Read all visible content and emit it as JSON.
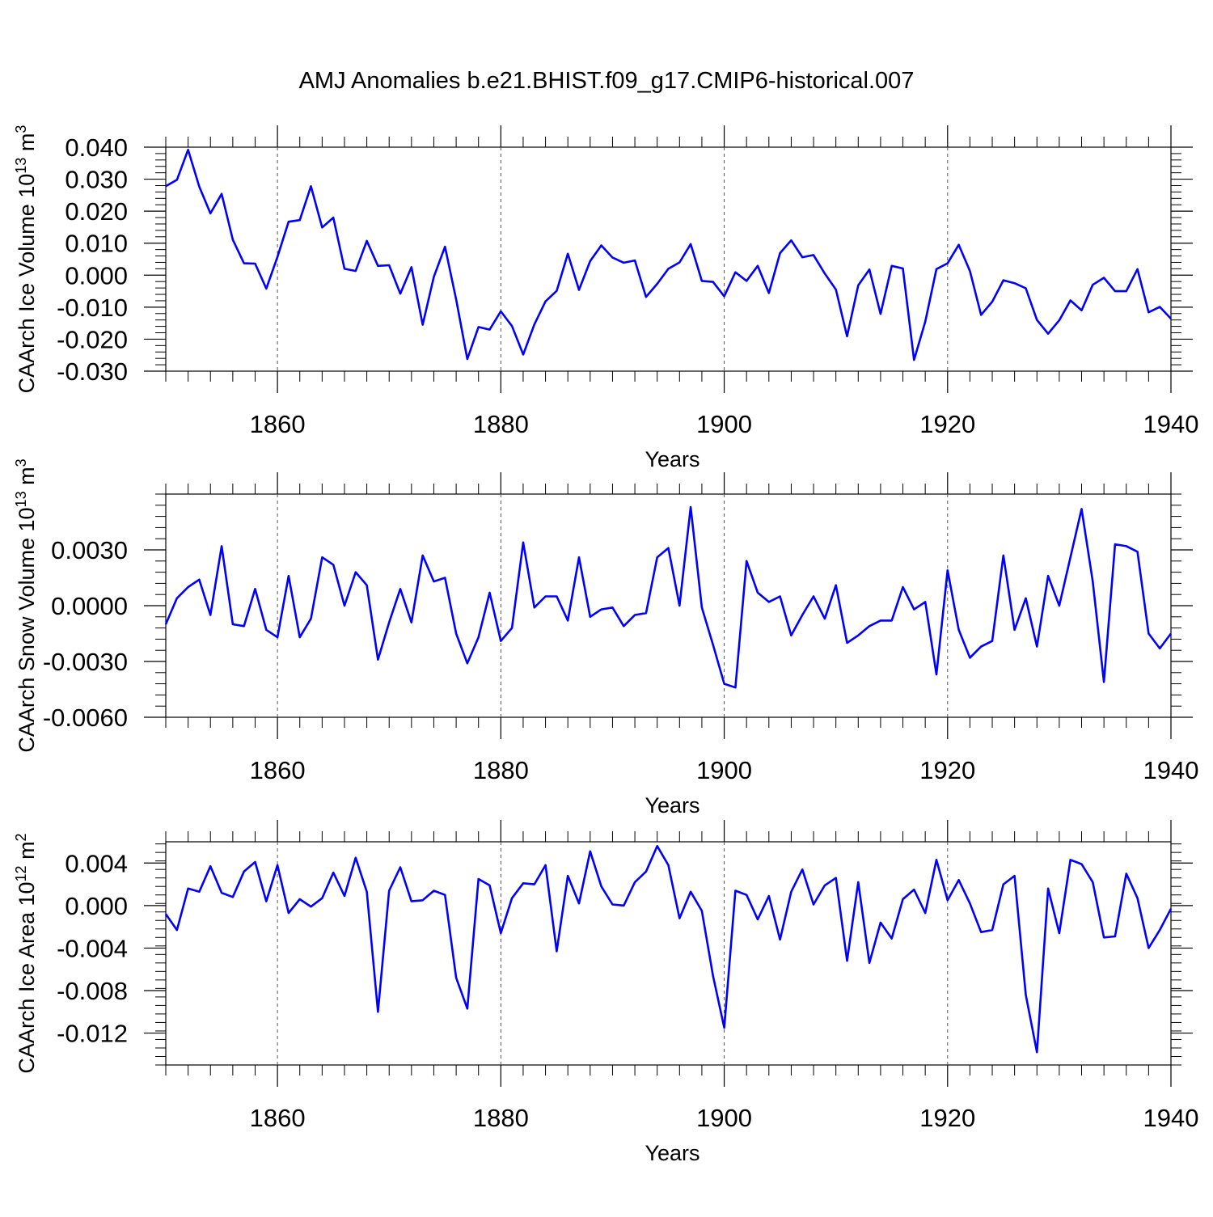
{
  "title": "AMJ Anomalies b.e21.BHIST.f09_g17.CMIP6-historical.007",
  "line_color": "#0000ff",
  "chart_data": [
    {
      "type": "line",
      "ylabel": "CAArch Ice Volume",
      "yunit_base": "10",
      "yunit_exp": "13",
      "yunit_unit": "m",
      "yunit_unit_exp": "3",
      "xlabel": "Years",
      "xlim": [
        1850,
        1940
      ],
      "ylim": [
        -0.03,
        0.04
      ],
      "xticks": [
        1860,
        1880,
        1900,
        1920,
        1940
      ],
      "yticks": [
        -0.03,
        -0.02,
        -0.01,
        0.0,
        0.01,
        0.02,
        0.03,
        0.04
      ],
      "ytick_labels": [
        "-0.030",
        "-0.020",
        "-0.010",
        "0.000",
        "0.010",
        "0.020",
        "0.030",
        "0.040"
      ],
      "x_start": 1850,
      "values": [
        0.0278,
        0.0298,
        0.0392,
        0.0277,
        0.0193,
        0.0254,
        0.0111,
        0.0037,
        0.0036,
        -0.0042,
        0.0057,
        0.0167,
        0.0172,
        0.0278,
        0.0149,
        0.018,
        0.002,
        0.0013,
        0.0107,
        0.0029,
        0.0031,
        -0.0058,
        0.0025,
        -0.0155,
        -0.0005,
        0.0089,
        -0.0076,
        -0.0262,
        -0.0162,
        -0.017,
        -0.0113,
        -0.0159,
        -0.0248,
        -0.0154,
        -0.0082,
        -0.0049,
        0.0067,
        -0.0046,
        0.0044,
        0.0093,
        0.0055,
        0.0039,
        0.0046,
        -0.0068,
        -0.0027,
        0.002,
        0.004,
        0.0097,
        -0.0018,
        -0.0021,
        -0.0066,
        0.0009,
        -0.0018,
        0.0029,
        -0.0056,
        0.0069,
        0.0109,
        0.0056,
        0.0063,
        0.0005,
        -0.0045,
        -0.0191,
        -0.0032,
        0.0018,
        -0.0121,
        0.0029,
        0.0021,
        -0.0265,
        -0.0145,
        0.0019,
        0.0037,
        0.0095,
        0.0013,
        -0.0124,
        -0.0083,
        -0.0016,
        -0.0025,
        -0.0041,
        -0.014,
        -0.0183,
        -0.0141,
        -0.0079,
        -0.011,
        -0.003,
        -0.0008,
        -0.005,
        -0.005,
        0.0019,
        -0.0116,
        -0.0099,
        -0.0136
      ]
    },
    {
      "type": "line",
      "ylabel": "CAArch Snow Volume",
      "yunit_base": "10",
      "yunit_exp": "13",
      "yunit_unit": "m",
      "yunit_unit_exp": "3",
      "xlabel": "Years",
      "xlim": [
        1850,
        1940
      ],
      "ylim": [
        -0.006,
        0.006
      ],
      "xticks": [
        1860,
        1880,
        1900,
        1920,
        1940
      ],
      "yticks": [
        -0.006,
        -0.003,
        0.0,
        0.003
      ],
      "ytick_labels": [
        "-0.0060",
        "-0.0030",
        "0.0000",
        "0.0030"
      ],
      "x_start": 1850,
      "values": [
        -0.001,
        0.0004,
        0.001,
        0.0014,
        -0.0005,
        0.0032,
        -0.001,
        -0.0011,
        0.0009,
        -0.0013,
        -0.0017,
        0.0016,
        -0.0017,
        -0.0007,
        0.0026,
        0.0022,
        0.0,
        0.0018,
        0.0011,
        -0.0029,
        -0.0009,
        0.0009,
        -0.0009,
        0.0027,
        0.0013,
        0.0015,
        -0.0015,
        -0.0031,
        -0.0017,
        0.0007,
        -0.0019,
        -0.0012,
        0.0034,
        -0.0001,
        0.0005,
        0.0005,
        -0.0008,
        0.0026,
        -0.0006,
        -0.0002,
        -0.0001,
        -0.0011,
        -0.0005,
        -0.0004,
        0.0026,
        0.0031,
        0.0,
        0.0053,
        -0.0001,
        -0.0021,
        -0.0042,
        -0.0044,
        0.0024,
        0.0007,
        0.0002,
        0.0005,
        -0.0016,
        -0.0005,
        0.0005,
        -0.0007,
        0.0011,
        -0.002,
        -0.0016,
        -0.0011,
        -0.0008,
        -0.0008,
        0.001,
        -0.0002,
        0.0002,
        -0.0037,
        0.0019,
        -0.0013,
        -0.0028,
        -0.0022,
        -0.0019,
        0.0027,
        -0.0013,
        0.0004,
        -0.0022,
        0.0016,
        0.0,
        0.0026,
        0.0052,
        0.0013,
        -0.0041,
        0.0033,
        0.0032,
        0.0029,
        -0.0015,
        -0.0023,
        -0.0015
      ]
    },
    {
      "type": "line",
      "ylabel": "CAArch Ice Area",
      "yunit_base": "10",
      "yunit_exp": "12",
      "yunit_unit": "m",
      "yunit_unit_exp": "2",
      "xlabel": "Years",
      "xlim": [
        1850,
        1940
      ],
      "ylim": [
        -0.015,
        0.006
      ],
      "xticks": [
        1860,
        1880,
        1900,
        1920,
        1940
      ],
      "yticks": [
        -0.012,
        -0.008,
        -0.004,
        0.0,
        0.004
      ],
      "ytick_labels": [
        "-0.012",
        "-0.008",
        "-0.004",
        "0.000",
        "0.004"
      ],
      "x_start": 1850,
      "values": [
        -0.0008,
        -0.0023,
        0.0016,
        0.0013,
        0.0037,
        0.0012,
        0.0008,
        0.0032,
        0.0041,
        0.0004,
        0.0038,
        -0.0007,
        0.0006,
        -0.0001,
        0.0007,
        0.0031,
        0.0009,
        0.0045,
        0.0013,
        -0.01,
        0.0014,
        0.0036,
        0.0004,
        0.0005,
        0.0014,
        0.001,
        -0.0068,
        -0.0097,
        0.0025,
        0.0019,
        -0.0026,
        0.0007,
        0.0021,
        0.002,
        0.0038,
        -0.0043,
        0.0028,
        0.0002,
        0.0051,
        0.0018,
        0.0001,
        0.0,
        0.0022,
        0.0032,
        0.0056,
        0.0038,
        -0.0012,
        0.0013,
        -0.0005,
        -0.0066,
        -0.0115,
        0.0014,
        0.001,
        -0.0013,
        0.0009,
        -0.0032,
        0.0013,
        0.0034,
        0.0001,
        0.0019,
        0.0026,
        -0.0052,
        0.0022,
        -0.0054,
        -0.0016,
        -0.0031,
        0.0006,
        0.0015,
        -0.0007,
        0.0043,
        0.0005,
        0.0024,
        0.0002,
        -0.0025,
        -0.0023,
        0.002,
        0.0028,
        -0.0084,
        -0.0138,
        0.0016,
        -0.0026,
        0.0043,
        0.0039,
        0.0022,
        -0.003,
        -0.0029,
        0.003,
        0.0007,
        -0.004,
        -0.0023,
        -0.0003
      ]
    }
  ]
}
